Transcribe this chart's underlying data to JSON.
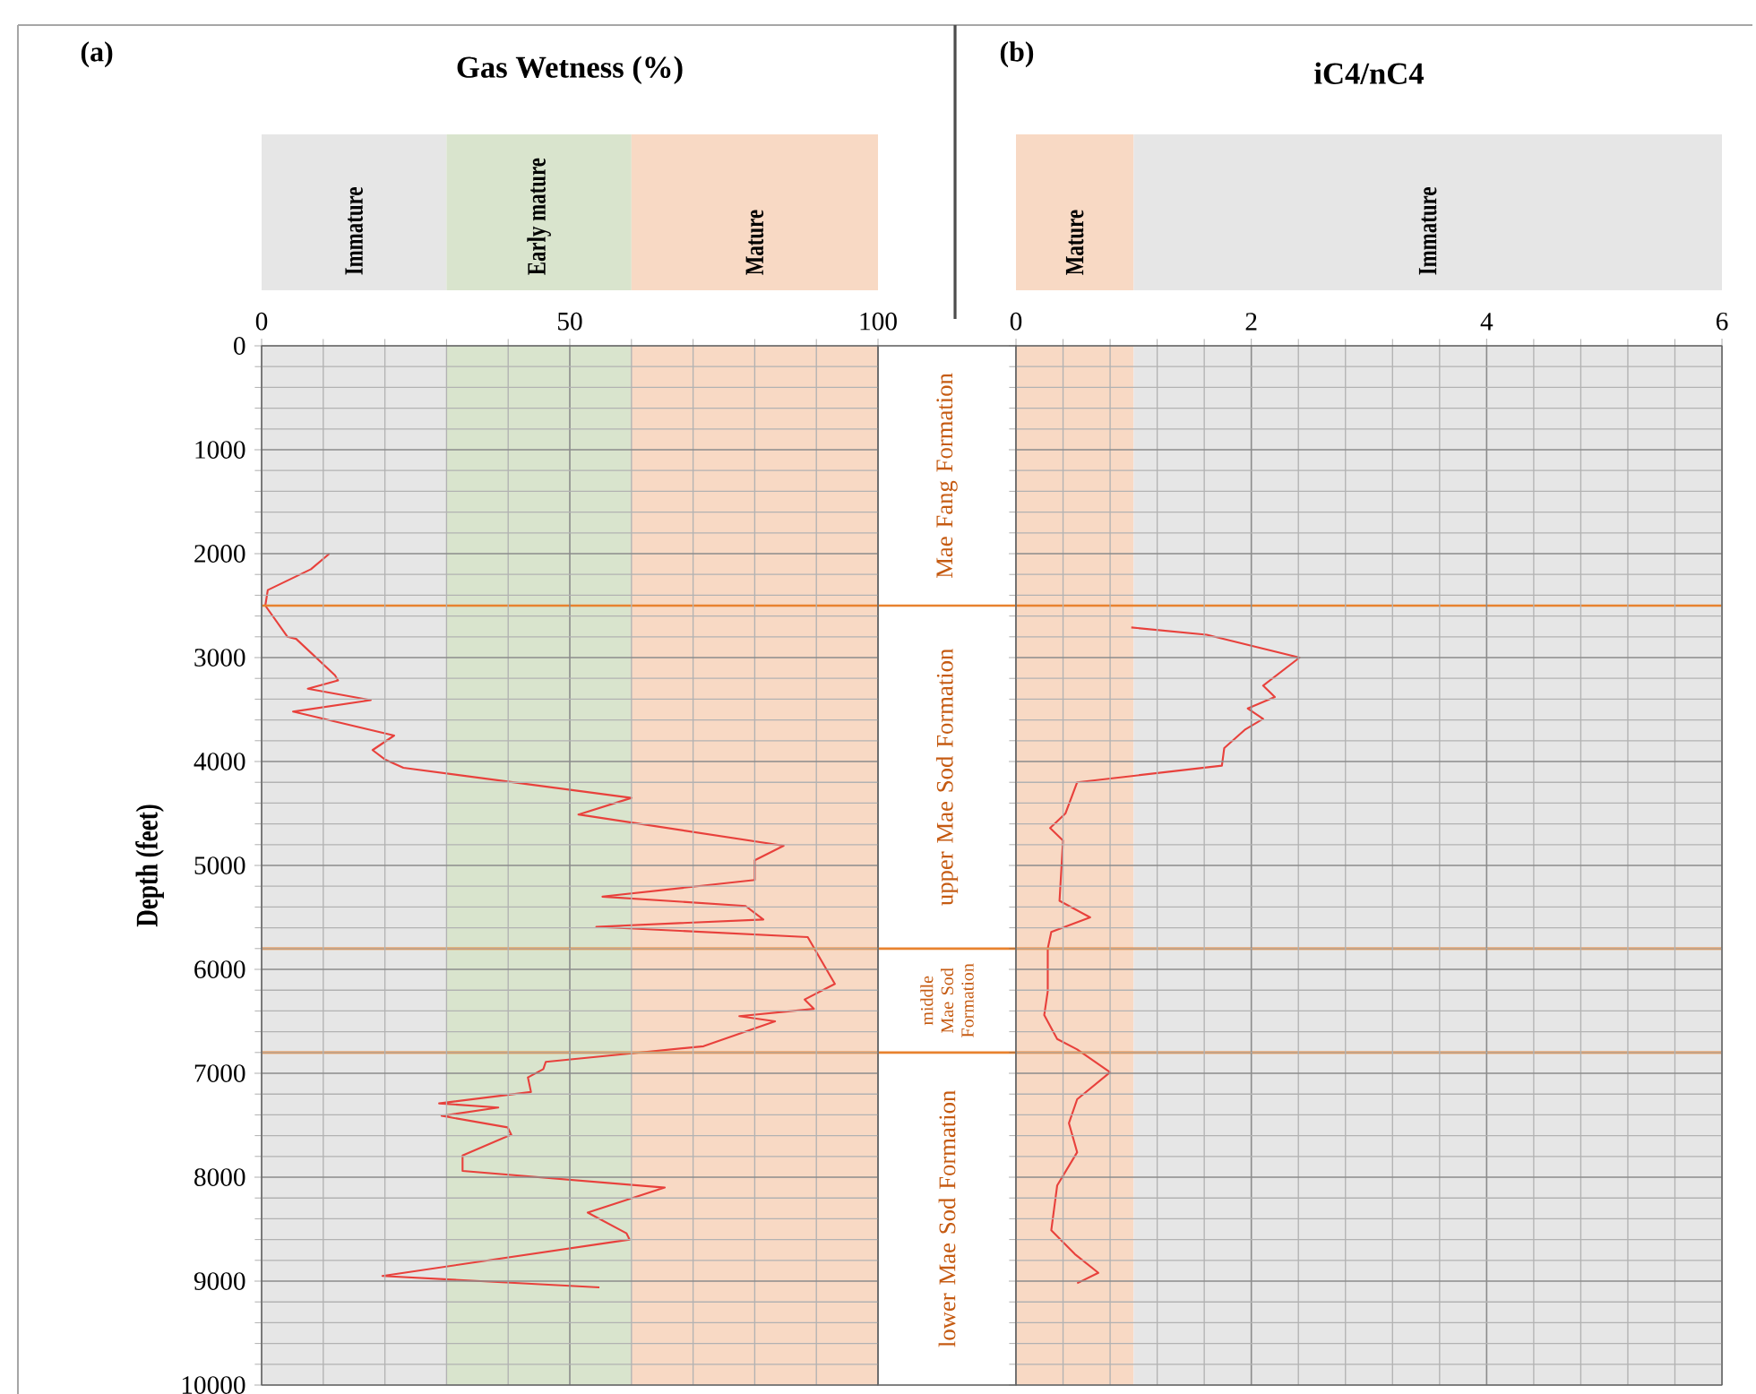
{
  "chart_data": [
    {
      "type": "line",
      "title": "Gas Wetness (%)",
      "ylabel": "Depth (feet)",
      "annotations": [
        "(a)",
        "Mae Fang Formation",
        "upper Mae Sod Formation",
        "middle Mae Sod Formation",
        "lower Mae Sod Formation"
      ],
      "xlim": [
        0,
        100
      ],
      "xticks": [
        0,
        50,
        100
      ],
      "ylim": [
        10000,
        0
      ],
      "yticks": [
        0,
        1000,
        2000,
        3000,
        4000,
        5000,
        6000,
        7000,
        8000,
        9000,
        10000
      ],
      "grid": true,
      "bands": [
        {
          "axis": "x",
          "from": 0,
          "to": 30,
          "label": "Immature",
          "color": "#e6e6e6"
        },
        {
          "axis": "x",
          "from": 30,
          "to": 60,
          "label": "Early mature",
          "color": "#d9e4cd"
        },
        {
          "axis": "x",
          "from": 60,
          "to": 100,
          "label": "Mature",
          "color": "#f8d9c4"
        }
      ],
      "ref_lines": [
        {
          "axis": "y",
          "value": 2500,
          "color": "#e8822f"
        },
        {
          "axis": "y",
          "value": 5800,
          "color": "#e8822f"
        },
        {
          "axis": "y",
          "value": 6800,
          "color": "#e8822f"
        }
      ],
      "series": [
        {
          "color": "#e8413c",
          "x": [
            11,
            8,
            1,
            0.6,
            4.2,
            5.6,
            11.9,
            12.4,
            7.5,
            17.7,
            5.1,
            21.5,
            18,
            20,
            23,
            60,
            51.4,
            84.7,
            80,
            80,
            55.3,
            78.5,
            81.4,
            54.3,
            88.6,
            93,
            88.1,
            89.6,
            77.5,
            83.3,
            71.7,
            59.7,
            46.1,
            45.7,
            43.2,
            43.7,
            28.8,
            38.4,
            29.2,
            39.9,
            40.5,
            32.6,
            32.6,
            65.4,
            52.9,
            59.2,
            59.7,
            19.6,
            54.8
          ],
          "values": [
            2000,
            2150,
            2350,
            2500,
            2800,
            2820,
            3170,
            3220,
            3300,
            3410,
            3520,
            3750,
            3890,
            3980,
            4060,
            4350,
            4510,
            4810,
            4950,
            5140,
            5300,
            5390,
            5520,
            5590,
            5690,
            6140,
            6290,
            6380,
            6450,
            6500,
            6740,
            6810,
            6890,
            6960,
            7040,
            7180,
            7290,
            7330,
            7410,
            7520,
            7590,
            7790,
            7940,
            8100,
            8340,
            8540,
            8600,
            8950,
            9060
          ]
        }
      ]
    },
    {
      "type": "line",
      "title": "iC4/nC4",
      "annotations": [
        "(b)"
      ],
      "xlim": [
        0,
        6
      ],
      "xticks": [
        0,
        2,
        4,
        6
      ],
      "ylim": [
        10000,
        0
      ],
      "yticks": [
        0,
        1000,
        2000,
        3000,
        4000,
        5000,
        6000,
        7000,
        8000,
        9000,
        10000
      ],
      "tick_labels": "x",
      "grid": true,
      "bands": [
        {
          "axis": "x",
          "from": 0,
          "to": 1,
          "label": "Mature",
          "color": "#f8d9c4"
        },
        {
          "axis": "x",
          "from": 1,
          "to": 6,
          "label": "Immature",
          "color": "#e6e6e6"
        }
      ],
      "ref_lines": [
        {
          "axis": "y",
          "value": 2500,
          "color": "#e8822f"
        },
        {
          "axis": "y",
          "value": 5800,
          "color": "#e8822f"
        },
        {
          "axis": "y",
          "value": 6800,
          "color": "#e8822f"
        }
      ],
      "series": [
        {
          "color": "#e8413c",
          "x": [
            0.98,
            1.62,
            2.41,
            2.1,
            2.2,
            1.97,
            2.1,
            1.95,
            1.77,
            1.75,
            0.52,
            0.42,
            0.29,
            0.4,
            0.37,
            0.63,
            0.3,
            0.27,
            0.27,
            0.24,
            0.35,
            0.52,
            0.8,
            0.52,
            0.45,
            0.52,
            0.35,
            0.3,
            0.5,
            0.7,
            0.52
          ],
          "values": [
            2710,
            2780,
            3000,
            3270,
            3380,
            3490,
            3590,
            3690,
            3870,
            4040,
            4200,
            4500,
            4640,
            4760,
            5340,
            5500,
            5640,
            5800,
            6210,
            6440,
            6670,
            6770,
            6990,
            7250,
            7480,
            7760,
            8080,
            8510,
            8740,
            8920,
            9020
          ]
        }
      ]
    }
  ]
}
